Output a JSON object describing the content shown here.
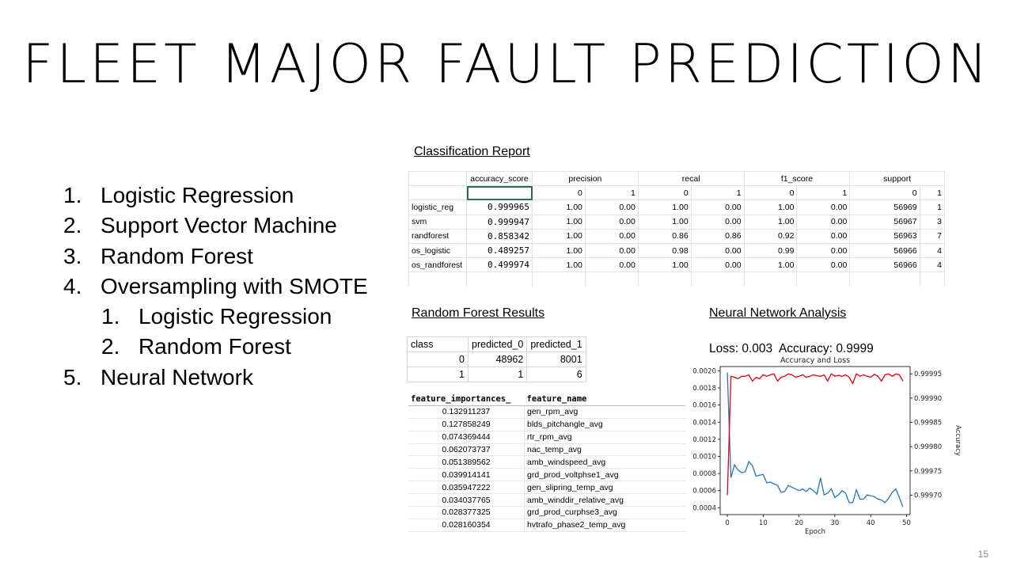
{
  "slide": {
    "title": "FLEET MAJOR FAULT PREDICTION",
    "page_number": "15"
  },
  "models_list": [
    {
      "num": "1.",
      "label": "Logistic Regression",
      "level": 0
    },
    {
      "num": "2.",
      "label": "Support Vector Machine",
      "level": 0
    },
    {
      "num": "3.",
      "label": "Random Forest",
      "level": 0
    },
    {
      "num": "4.",
      "label": "Oversampling with SMOTE",
      "level": 0
    },
    {
      "num": "1.",
      "label": "Logistic Regression",
      "level": 1
    },
    {
      "num": "2.",
      "label": "Random Forest",
      "level": 1
    },
    {
      "num": "5.",
      "label": "Neural Network",
      "level": 0
    }
  ],
  "classification_report": {
    "caption": "Classification Report",
    "headers": [
      "accuracy_score",
      "precision",
      "recal",
      "f1_score",
      "support"
    ],
    "subheaders": [
      "0",
      "1",
      "0",
      "1",
      "0",
      "1",
      "0",
      "1"
    ],
    "rows": [
      {
        "model": "logistic_reg",
        "accuracy": "0.999965",
        "values": [
          "1.00",
          "0.00",
          "1.00",
          "0.00",
          "1.00",
          "0.00",
          "56969",
          "1"
        ]
      },
      {
        "model": "svm",
        "accuracy": "0.999947",
        "values": [
          "1.00",
          "0.00",
          "1.00",
          "0.00",
          "1.00",
          "0.00",
          "56967",
          "3"
        ]
      },
      {
        "model": "randforest",
        "accuracy": "0.858342",
        "values": [
          "1.00",
          "0.00",
          "0.86",
          "0.86",
          "0.92",
          "0.00",
          "56963",
          "7"
        ]
      },
      {
        "model": "os_logistic",
        "accuracy": "0.489257",
        "values": [
          "1.00",
          "0.00",
          "0.98",
          "0.00",
          "0.99",
          "0.00",
          "56966",
          "4"
        ]
      },
      {
        "model": "os_randforest",
        "accuracy": "0.499974",
        "values": [
          "1.00",
          "0.00",
          "1.00",
          "0.00",
          "1.00",
          "0.00",
          "56966",
          "4"
        ]
      }
    ]
  },
  "random_forest_results": {
    "caption": "Random Forest Results",
    "headers": [
      "class",
      "predicted_0",
      "predicted_1"
    ],
    "rows": [
      [
        "0",
        "48962",
        "8001"
      ],
      [
        "1",
        "1",
        "6"
      ]
    ]
  },
  "feature_importances": {
    "headers": [
      "feature_importances_",
      "feature_name"
    ],
    "rows": [
      [
        "0.132911237",
        "gen_rpm_avg"
      ],
      [
        "0.127858249",
        "blds_pitchangle_avg"
      ],
      [
        "0.074369444",
        "rtr_rpm_avg"
      ],
      [
        "0.062073737",
        "nac_temp_avg"
      ],
      [
        "0.051389562",
        "amb_windspeed_avg"
      ],
      [
        "0.039914141",
        "grd_prod_voltphse1_avg"
      ],
      [
        "0.035947222",
        "gen_slipring_temp_avg"
      ],
      [
        "0.034037765",
        "amb_winddir_relative_avg"
      ],
      [
        "0.028377325",
        "grd_prod_curphse3_avg"
      ],
      [
        "0.028160354",
        "hvtrafo_phase2_temp_avg"
      ]
    ]
  },
  "neural_network": {
    "caption": "Neural Network Analysis",
    "loss_label": "Loss:",
    "loss_value": "0.003",
    "accuracy_label": "Accuracy:",
    "accuracy_value": "0.9999"
  },
  "chart_data": {
    "type": "line",
    "title": "Accuracy and Loss",
    "xlabel": "Epoch",
    "ylabel": "",
    "ylabel_right": "Accuracy",
    "xlim": [
      -2,
      51
    ],
    "ylim": [
      0.00032,
      0.00205
    ],
    "ylim_right": [
      0.99966,
      0.999965
    ],
    "xticks": [
      0,
      10,
      20,
      30,
      40,
      50
    ],
    "yticks": [
      0.0004,
      0.0006,
      0.0008,
      0.001,
      0.0012,
      0.0014,
      0.0016,
      0.0018,
      0.002
    ],
    "yticks_right": [
      0.9997,
      0.99975,
      0.9998,
      0.99985,
      0.9999,
      0.99995
    ],
    "grid": false,
    "colors": {
      "loss": "#1f77b4",
      "accuracy": "#e8000b"
    },
    "series": [
      {
        "axis": "left",
        "x": [
          0,
          1,
          2,
          3,
          4,
          5,
          6,
          7,
          8,
          9,
          10,
          11,
          12,
          13,
          14,
          15,
          16,
          17,
          18,
          19,
          20,
          21,
          22,
          23,
          24,
          25,
          26,
          27,
          28,
          29,
          30,
          31,
          32,
          33,
          34,
          35,
          36,
          37,
          38,
          39,
          40,
          41,
          42,
          43,
          44,
          45,
          46,
          47,
          48,
          49
        ],
        "values": [
          0.00198,
          0.00075,
          0.0009,
          0.00084,
          0.00081,
          0.00082,
          0.00094,
          0.00089,
          0.00077,
          0.00078,
          0.00079,
          0.00069,
          0.0007,
          0.00068,
          0.00066,
          0.00058,
          0.00059,
          0.00066,
          0.00064,
          0.00062,
          0.0006,
          0.00062,
          0.00059,
          0.00063,
          0.0006,
          0.00056,
          0.00075,
          0.00055,
          0.00057,
          0.00062,
          0.00052,
          0.00055,
          0.0006,
          0.00057,
          0.00046,
          0.00046,
          0.00061,
          0.0005,
          0.0005,
          0.00055,
          0.00054,
          0.00053,
          0.0005,
          0.00049,
          0.00046,
          0.00051,
          0.00058,
          0.00062,
          0.00052,
          0.00041
        ]
      },
      {
        "axis": "right",
        "x": [
          0,
          1,
          2,
          3,
          4,
          5,
          6,
          7,
          8,
          9,
          10,
          11,
          12,
          13,
          14,
          15,
          16,
          17,
          18,
          19,
          20,
          21,
          22,
          23,
          24,
          25,
          26,
          27,
          28,
          29,
          30,
          31,
          32,
          33,
          34,
          35,
          36,
          37,
          38,
          39,
          40,
          41,
          42,
          43,
          44,
          45,
          46,
          47,
          48,
          49
        ],
        "values": [
          0.9997,
          0.999945,
          0.999943,
          0.99994,
          0.999945,
          0.999945,
          0.999948,
          0.999935,
          0.999943,
          0.99994,
          0.999948,
          0.999945,
          0.999948,
          0.99995,
          0.999935,
          0.999943,
          0.999945,
          0.99995,
          0.999948,
          0.999943,
          0.999945,
          0.999948,
          0.999943,
          0.999945,
          0.999948,
          0.999946,
          0.999945,
          0.999948,
          0.999935,
          0.99995,
          0.999945,
          0.999947,
          0.999945,
          0.999948,
          0.999943,
          0.99993,
          0.99995,
          0.999945,
          0.999948,
          0.999945,
          0.999943,
          0.999949,
          0.999945,
          0.999935,
          0.999948,
          0.99995,
          0.999945,
          0.99995,
          0.999948,
          0.999935
        ]
      }
    ]
  }
}
